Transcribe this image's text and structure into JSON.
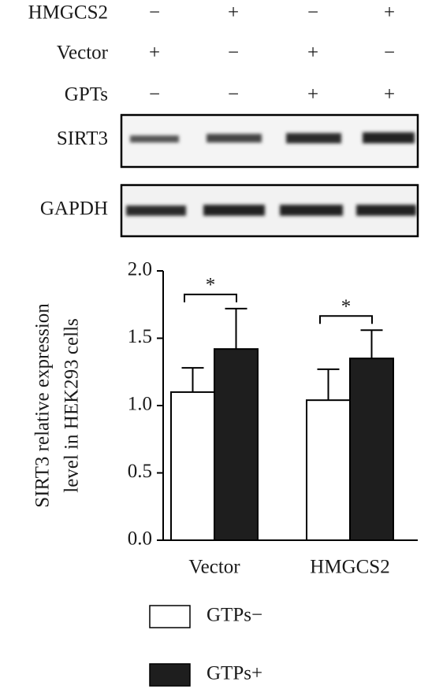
{
  "blot": {
    "rows": [
      {
        "label": "HMGCS2",
        "signs": [
          "−",
          "+",
          "−",
          "+"
        ]
      },
      {
        "label": "Vector",
        "signs": [
          "+",
          "−",
          "+",
          "−"
        ]
      },
      {
        "label": "GPTs",
        "signs": [
          "−",
          "−",
          "+",
          "+"
        ]
      }
    ],
    "bands": [
      "SIRT3",
      "GAPDH"
    ]
  },
  "chart_data": {
    "type": "bar",
    "ylabel": [
      "SIRT3 relative expression",
      "level in HEK293 cells"
    ],
    "categories": [
      "Vector",
      "HMGCS2"
    ],
    "series": [
      {
        "name": "GTPs−",
        "color": "#ffffff",
        "values": [
          1.1,
          1.04
        ],
        "errors": [
          0.18,
          0.23
        ]
      },
      {
        "name": "GTPs+",
        "color": "#1e1e1e",
        "values": [
          1.42,
          1.35
        ],
        "errors": [
          0.3,
          0.21
        ]
      }
    ],
    "annotations": [
      "*",
      "*"
    ],
    "ylim": [
      0,
      2
    ],
    "yticks": [
      {
        "value": 0,
        "label": "0.0"
      },
      {
        "value": 0.5,
        "label": "0.5"
      },
      {
        "value": 1,
        "label": "1.0"
      },
      {
        "value": 1.5,
        "label": "1.5"
      },
      {
        "value": 2,
        "label": "2.0"
      }
    ]
  }
}
